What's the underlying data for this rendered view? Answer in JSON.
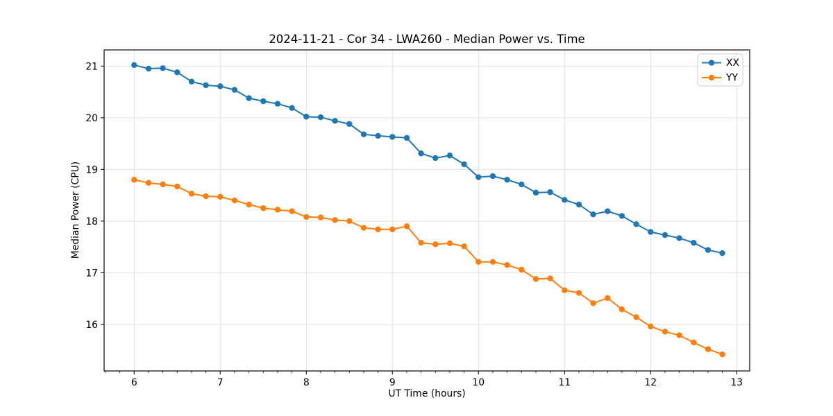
{
  "chart_data": {
    "type": "line",
    "title": "2024-11-21 - Cor 34 - LWA260 - Median Power vs. Time",
    "xlabel": "UT Time (hours)",
    "ylabel": "Median Power (CPU)",
    "xlim": [
      5.651,
      13.151
    ],
    "ylim": [
      15.099,
      21.313
    ],
    "xticks": [
      6,
      7,
      8,
      9,
      10,
      11,
      12,
      13
    ],
    "yticks": [
      16,
      17,
      18,
      19,
      20,
      21
    ],
    "x_minor_step": 0.1667,
    "grid": true,
    "legend_position": "upper right",
    "x": [
      6.0,
      6.167,
      6.333,
      6.5,
      6.667,
      6.833,
      7.0,
      7.167,
      7.333,
      7.5,
      7.667,
      7.833,
      8.0,
      8.167,
      8.333,
      8.5,
      8.667,
      8.833,
      9.0,
      9.167,
      9.333,
      9.5,
      9.667,
      9.833,
      10.0,
      10.167,
      10.333,
      10.5,
      10.667,
      10.833,
      11.0,
      11.167,
      11.333,
      11.5,
      11.667,
      11.833,
      12.0,
      12.167,
      12.333,
      12.5,
      12.667,
      12.833
    ],
    "series": [
      {
        "name": "XX",
        "color": "#1f77b4",
        "values": [
          21.02,
          20.95,
          20.96,
          20.88,
          20.7,
          20.63,
          20.61,
          20.54,
          20.38,
          20.32,
          20.27,
          20.19,
          20.02,
          20.01,
          19.94,
          19.88,
          19.68,
          19.65,
          19.63,
          19.61,
          19.31,
          19.22,
          19.27,
          19.1,
          18.85,
          18.87,
          18.8,
          18.71,
          18.55,
          18.56,
          18.41,
          18.32,
          18.13,
          18.19,
          18.1,
          17.94,
          17.79,
          17.73,
          17.67,
          17.58,
          17.44,
          17.38
        ]
      },
      {
        "name": "YY",
        "color": "#ff7f0e",
        "values": [
          18.8,
          18.74,
          18.71,
          18.67,
          18.53,
          18.48,
          18.47,
          18.4,
          18.32,
          18.25,
          18.22,
          18.19,
          18.08,
          18.07,
          18.02,
          18.0,
          17.87,
          17.84,
          17.84,
          17.9,
          17.58,
          17.55,
          17.57,
          17.51,
          17.21,
          17.21,
          17.15,
          17.06,
          16.88,
          16.89,
          16.66,
          16.61,
          16.41,
          16.51,
          16.29,
          16.14,
          15.96,
          15.86,
          15.79,
          15.65,
          15.52,
          15.42
        ]
      }
    ]
  },
  "style": {
    "grid_color": "#e0e0e0",
    "spine_color": "#000000",
    "tick_color": "#000000",
    "background": "#ffffff",
    "legend_border": "#cccccc",
    "legend_bg": "#ffffff"
  }
}
